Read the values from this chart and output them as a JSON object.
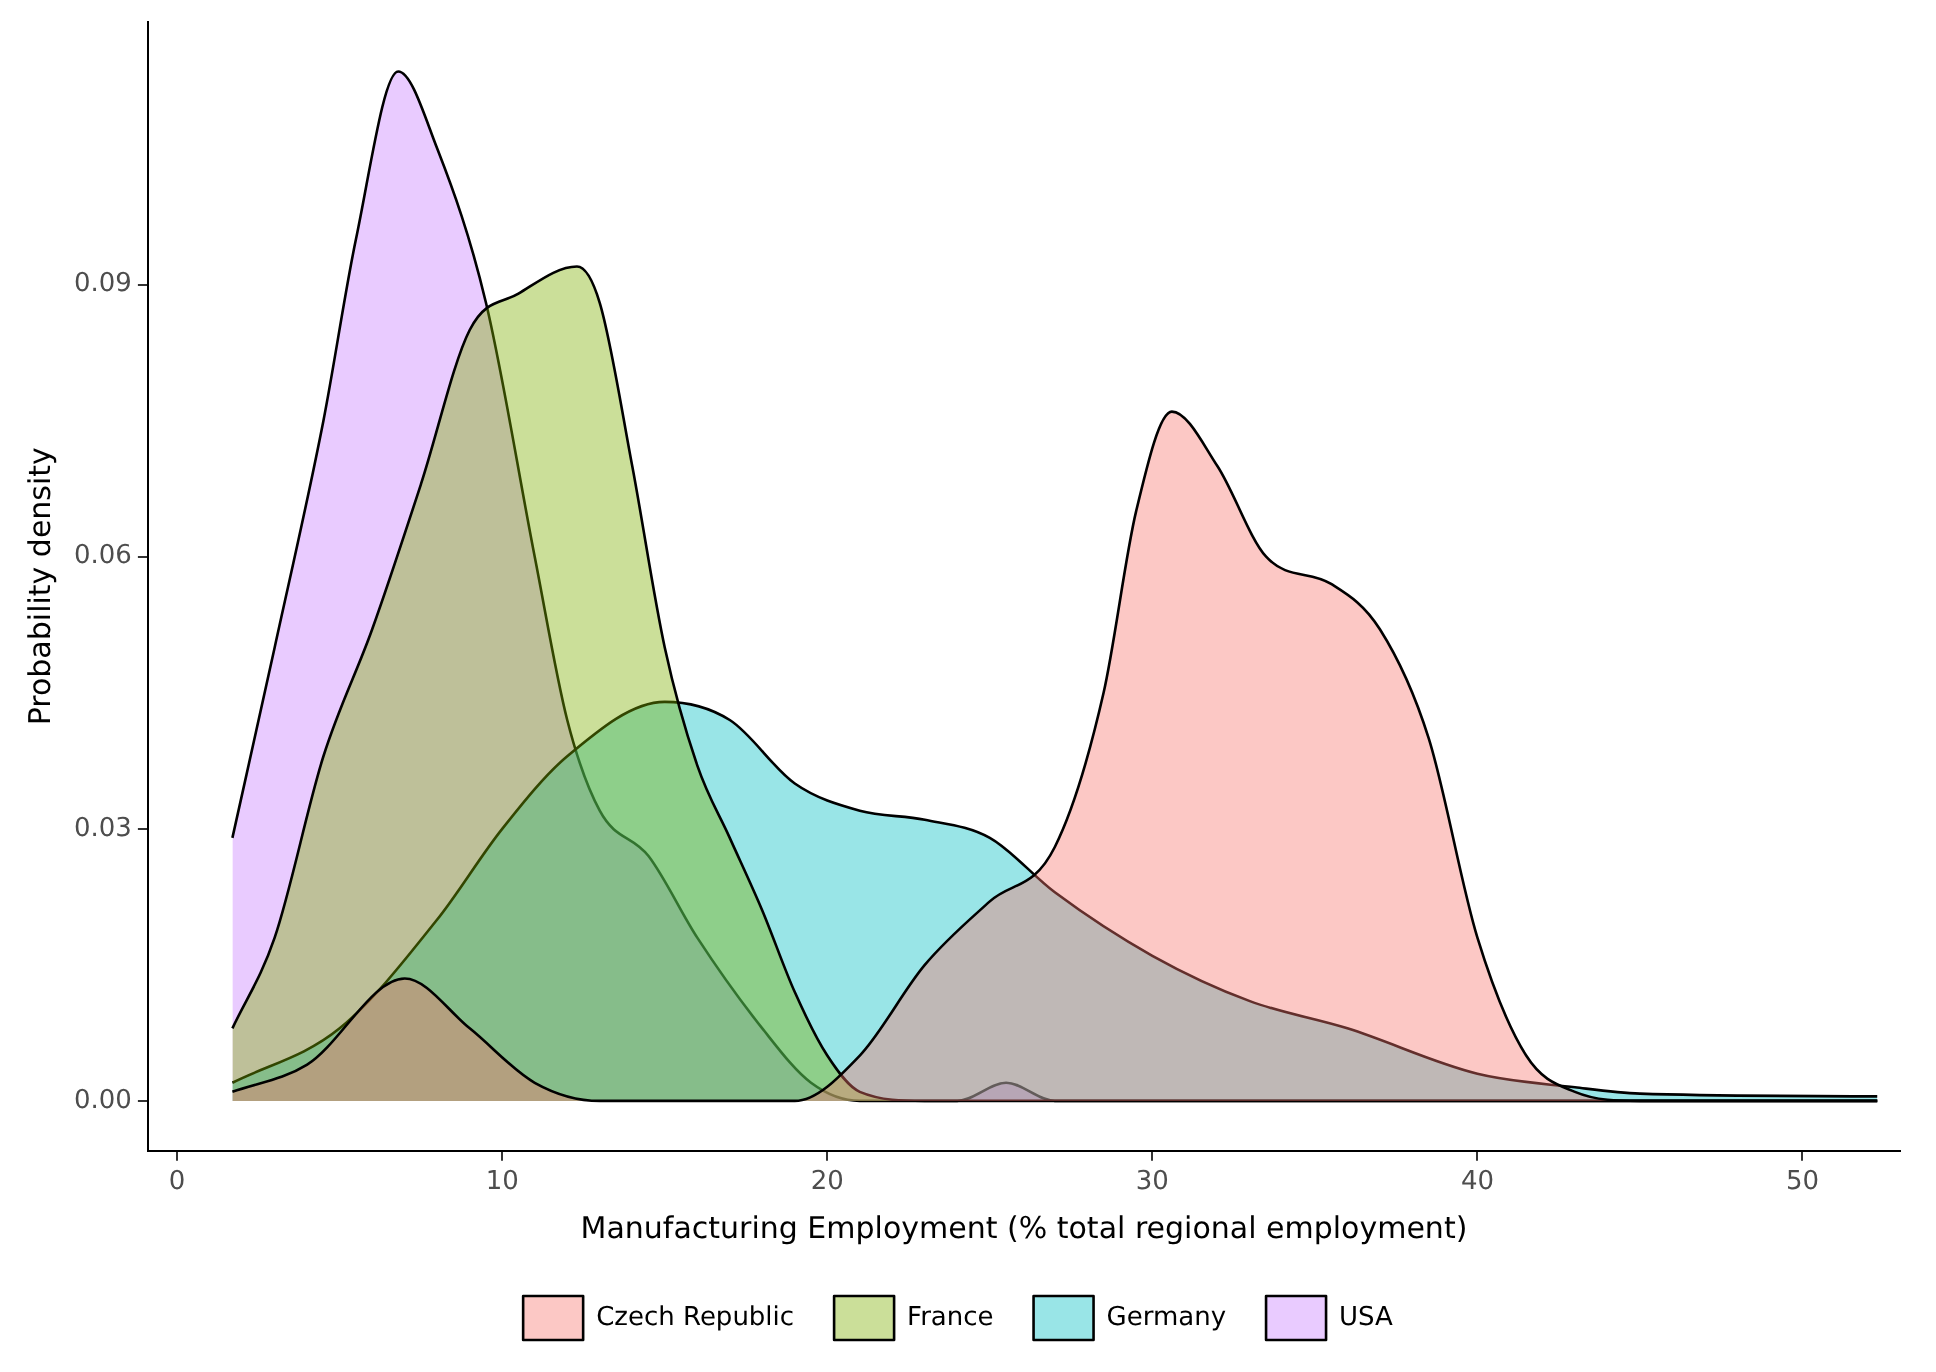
{
  "chart_data": {
    "type": "area",
    "xlabel": "Manufacturing Employment (% total regional employment)",
    "ylabel": "Probability density",
    "xlim": [
      -0.9,
      53
    ],
    "xticks": [
      0,
      10,
      20,
      30,
      40,
      50
    ],
    "ylim": [
      -0.0055,
      0.119
    ],
    "yticks": [
      {
        "value": 0,
        "label": "0.00"
      },
      {
        "value": 0.03,
        "label": "0.03"
      },
      {
        "value": 0.06,
        "label": "0.06"
      },
      {
        "value": 0.09,
        "label": "0.09"
      }
    ],
    "grid": false,
    "legend": "bottom",
    "marker": "none",
    "line_style": "solid",
    "series": [
      {
        "name": "Czech Republic",
        "color": "#f8766d",
        "x": [
          1.7,
          4,
          7,
          9,
          11,
          13,
          19,
          21,
          23,
          25,
          27,
          28.5,
          29.5,
          30.6,
          32,
          33.5,
          35.5,
          37,
          38.5,
          40,
          41.5,
          43,
          45,
          52.3
        ],
        "values": [
          0.001,
          0.004,
          0.0135,
          0.008,
          0.002,
          0,
          0,
          0.005,
          0.015,
          0.022,
          0.028,
          0.045,
          0.065,
          0.076,
          0.07,
          0.06,
          0.057,
          0.052,
          0.04,
          0.018,
          0.005,
          0.001,
          0,
          0
        ]
      },
      {
        "name": "France",
        "color": "#7cae00",
        "x": [
          1.7,
          3,
          4.5,
          6,
          7.5,
          9,
          10.5,
          12.3,
          13,
          14,
          15,
          16,
          17,
          18,
          19,
          20,
          21,
          23,
          52.3
        ],
        "values": [
          0.008,
          0.018,
          0.038,
          0.052,
          0.068,
          0.085,
          0.089,
          0.092,
          0.088,
          0.07,
          0.05,
          0.037,
          0.029,
          0.021,
          0.012,
          0.005,
          0.001,
          0,
          0
        ]
      },
      {
        "name": "Germany",
        "color": "#00bfc4",
        "x": [
          1.7,
          5,
          8,
          10,
          12,
          15,
          17,
          19,
          21,
          23,
          25,
          27,
          30,
          33,
          36,
          40,
          43,
          45,
          52.3
        ],
        "values": [
          0.002,
          0.008,
          0.02,
          0.03,
          0.038,
          0.044,
          0.042,
          0.035,
          0.032,
          0.031,
          0.029,
          0.023,
          0.016,
          0.011,
          0.008,
          0.003,
          0.0015,
          0.0008,
          0.0005
        ]
      },
      {
        "name": "USA",
        "color": "#c77cff",
        "x": [
          1.7,
          3,
          4.5,
          5.5,
          6.8,
          8,
          9.5,
          11,
          12,
          13,
          14.5,
          16,
          18,
          19.5,
          21,
          24,
          25.5,
          27,
          52.3
        ],
        "values": [
          0.029,
          0.05,
          0.075,
          0.095,
          0.1135,
          0.105,
          0.088,
          0.06,
          0.042,
          0.032,
          0.027,
          0.018,
          0.008,
          0.002,
          0,
          0,
          0.002,
          0,
          0
        ]
      }
    ]
  }
}
